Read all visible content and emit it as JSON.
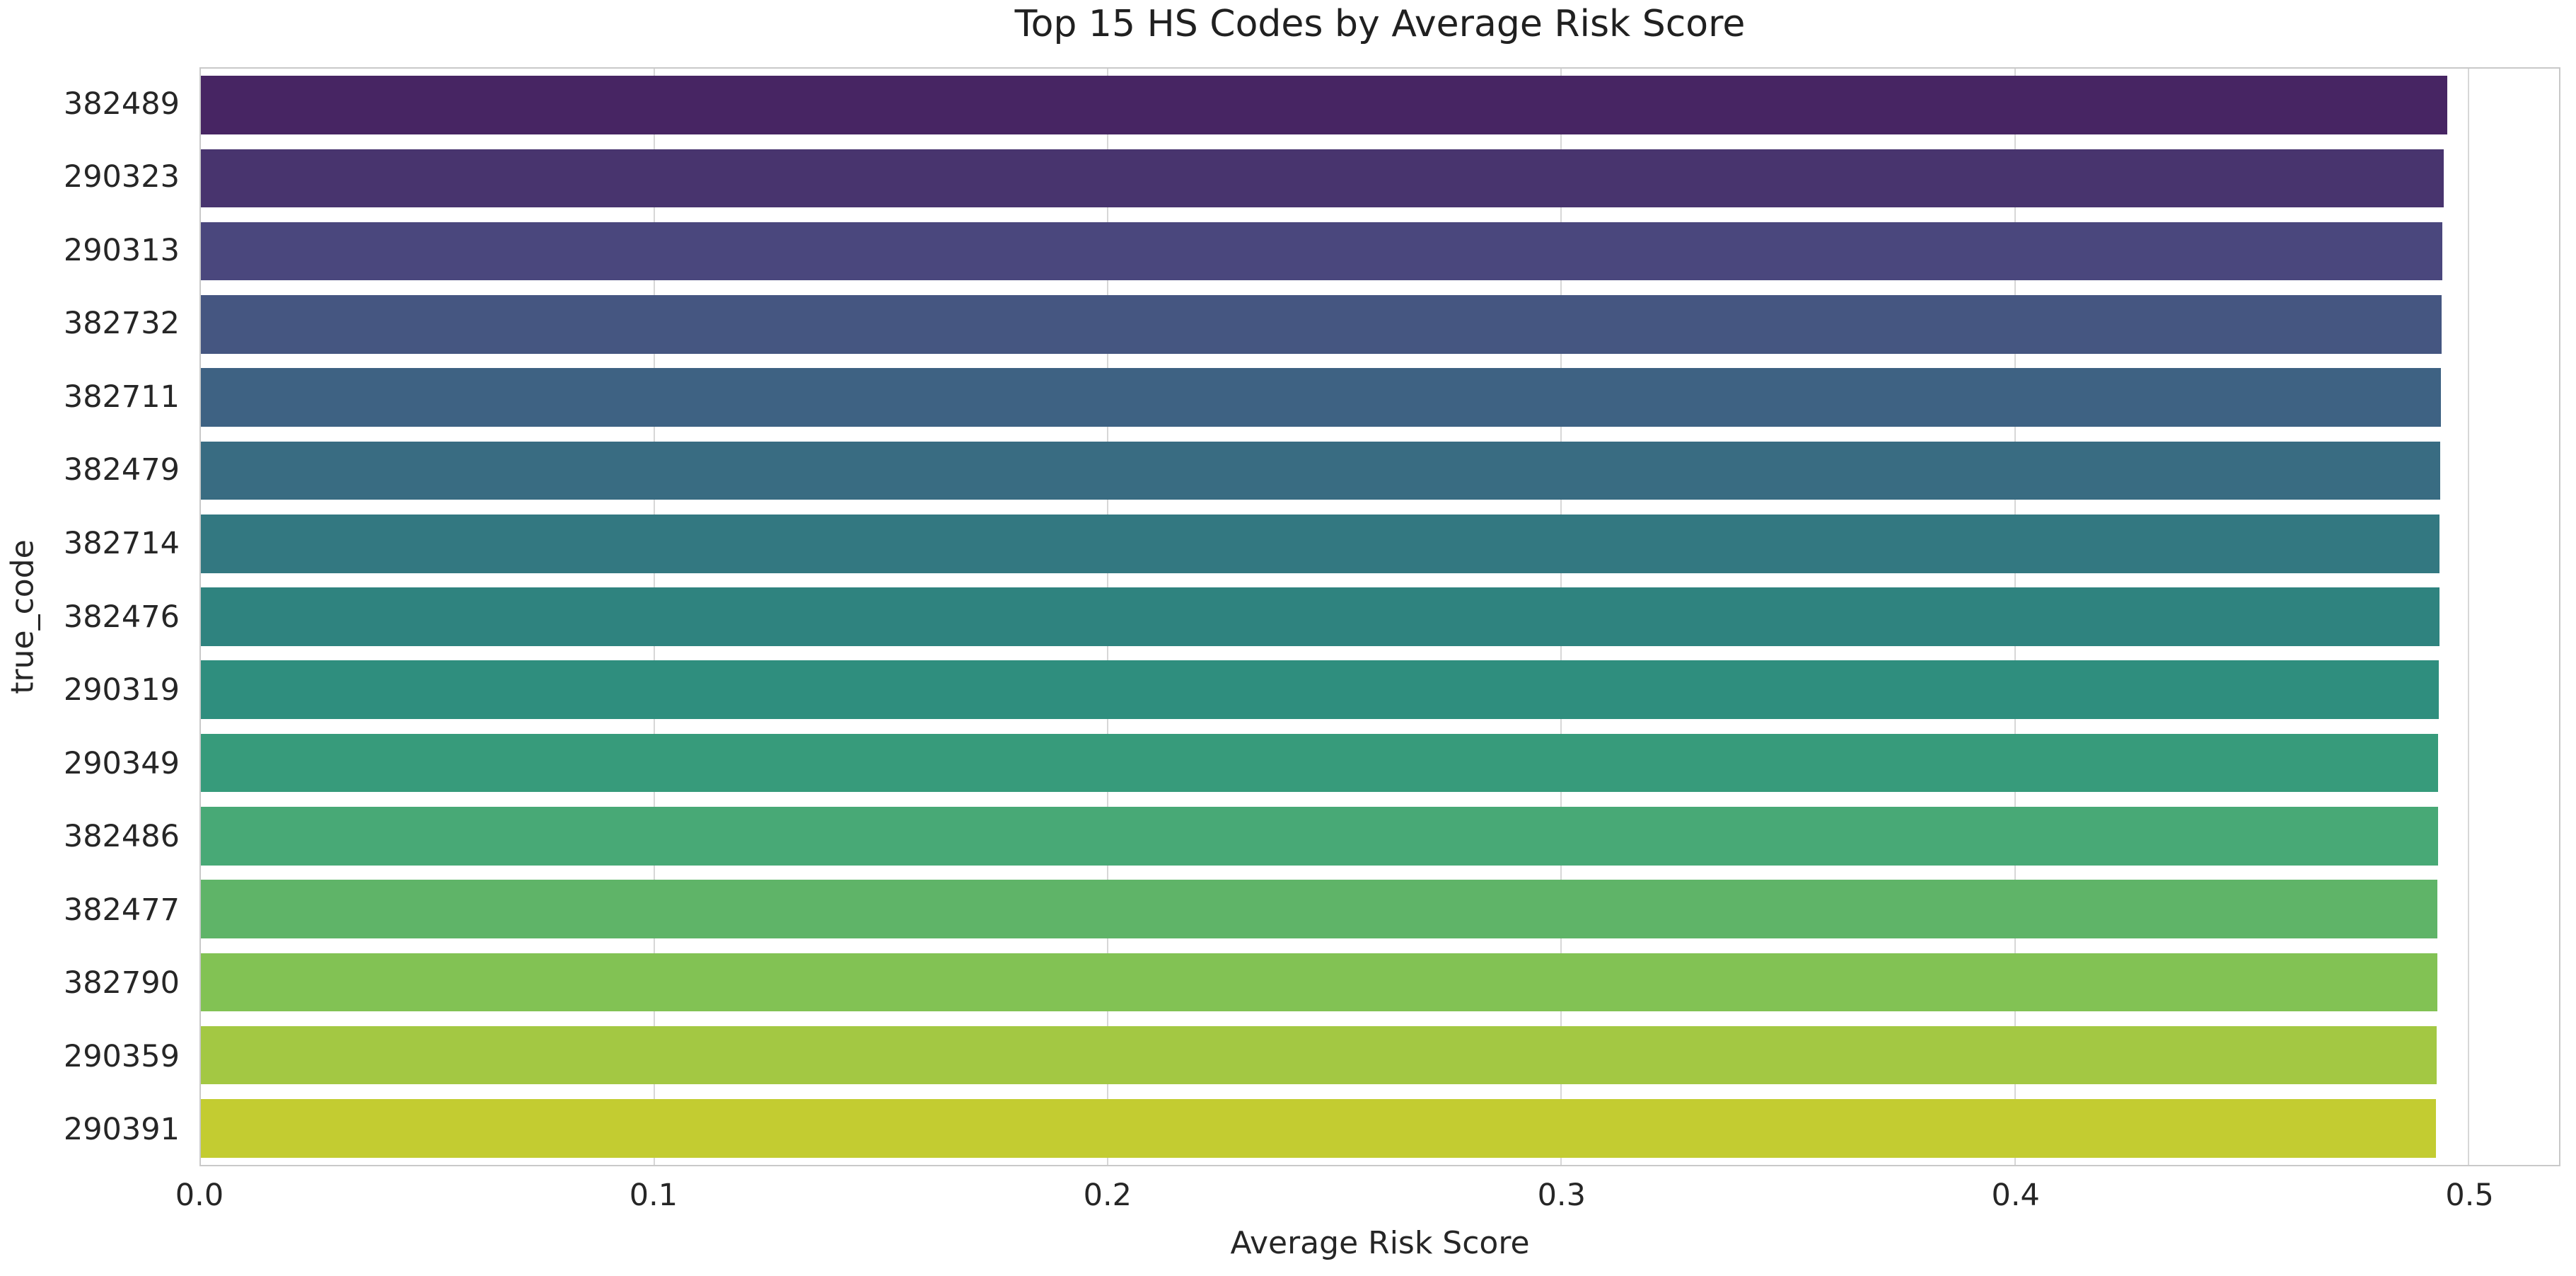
{
  "title": "Top 15 HS Codes by Average Risk Score",
  "chart_data": {
    "type": "bar",
    "orientation": "horizontal",
    "title": "Top 15 HS Codes by Average Risk Score",
    "xlabel": "Average Risk Score",
    "ylabel": "true_code",
    "categories": [
      "382489",
      "290323",
      "290313",
      "382732",
      "382711",
      "382479",
      "382714",
      "382476",
      "290319",
      "290349",
      "382486",
      "382477",
      "382790",
      "290359",
      "290391"
    ],
    "values": [
      0.4953,
      0.4946,
      0.4943,
      0.4941,
      0.4939,
      0.4938,
      0.4937,
      0.4936,
      0.4935,
      0.4934,
      0.4933,
      0.4932,
      0.4931,
      0.493,
      0.4929
    ],
    "xlim": [
      0,
      0.52
    ],
    "x_ticks": [
      0,
      0.1,
      0.2,
      0.3,
      0.4,
      0.5
    ],
    "x_tick_labels": [
      "0.0",
      "0.1",
      "0.2",
      "0.3",
      "0.4",
      "0.5"
    ],
    "grid": true,
    "legend": null,
    "palette_name": "viridis",
    "bar_colors": [
      "#472563",
      "#48346e",
      "#4a477d",
      "#455681",
      "#3e6283",
      "#396c82",
      "#337881",
      "#2f837f",
      "#2f8e7e",
      "#379b7b",
      "#48a976",
      "#5fb468",
      "#82c254",
      "#a3c843",
      "#c3cc31"
    ]
  },
  "colors": {
    "background": "#ffffff",
    "spine": "#c9c9c9",
    "grid": "#d7d7d7",
    "text": "#262626"
  }
}
